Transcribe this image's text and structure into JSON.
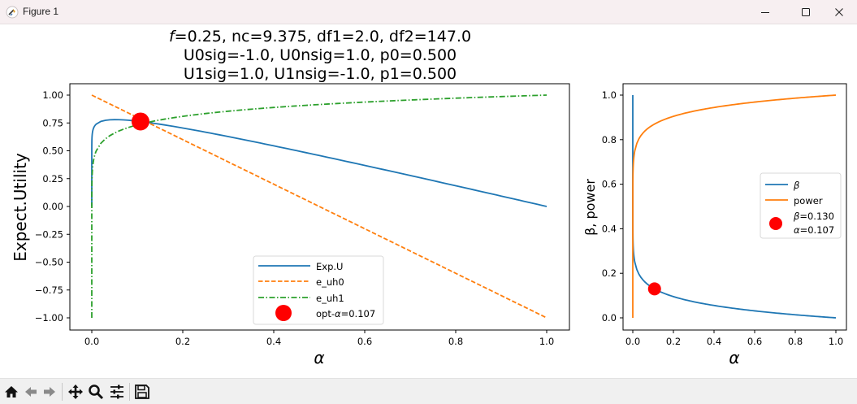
{
  "window": {
    "title": "Figure 1",
    "app_icon": "matplotlib-icon",
    "controls": [
      {
        "name": "minimize-button",
        "icon": "minimize-icon"
      },
      {
        "name": "maximize-button",
        "icon": "maximize-icon"
      },
      {
        "name": "close-button",
        "icon": "close-icon"
      }
    ]
  },
  "figure": {
    "suptitle_lines": [
      {
        "italic": "f",
        "rest": "=0.25, nc=9.375, df1=2.0, df2=147.0"
      },
      {
        "italic": "",
        "rest": "U0sig=-1.0, U0nsig=1.0, p0=0.500"
      },
      {
        "italic": "",
        "rest": "U1sig=1.0, U1nsig=-1.0, p1=0.500"
      }
    ]
  },
  "toolbar": {
    "buttons": [
      {
        "name": "home-button",
        "icon": "home-icon"
      },
      {
        "name": "back-button",
        "icon": "arrow-left-icon"
      },
      {
        "name": "forward-button",
        "icon": "arrow-right-icon"
      },
      {
        "name": "pan-button",
        "icon": "move-icon"
      },
      {
        "name": "zoom-button",
        "icon": "magnifier-icon"
      },
      {
        "name": "configure-subplots-button",
        "icon": "sliders-icon"
      },
      {
        "name": "save-button",
        "icon": "floppy-disk-icon"
      }
    ]
  },
  "chart_data": [
    {
      "type": "line",
      "title": "",
      "xlabel": "α",
      "ylabel": "Expect.Utility",
      "xlim": [
        -0.05,
        1.05
      ],
      "ylim": [
        -1.1,
        1.1
      ],
      "xticks": [
        "0.0",
        "0.2",
        "0.4",
        "0.6",
        "0.8",
        "1.0"
      ],
      "xtick_values": [
        0.0,
        0.2,
        0.4,
        0.6,
        0.8,
        1.0
      ],
      "yticks": [
        "1.00",
        "0.75",
        "0.50",
        "0.25",
        "0.00",
        "−0.25",
        "−0.50",
        "−0.75",
        "−1.00"
      ],
      "ytick_values": [
        1.0,
        0.75,
        0.5,
        0.25,
        0.0,
        -0.25,
        -0.5,
        -0.75,
        -1.0
      ],
      "grid": false,
      "legend_position": "lower-center",
      "series": [
        {
          "name": "Exp.U",
          "color": "#1f77b4",
          "style": "solid",
          "x": [
            0.0,
            0.001,
            0.005,
            0.01,
            0.02,
            0.05,
            0.107,
            0.2,
            0.3,
            0.4,
            0.5,
            0.6,
            0.7,
            0.8,
            0.9,
            1.0
          ],
          "y": [
            0.0,
            0.65,
            0.71,
            0.74,
            0.76,
            0.78,
            0.763,
            0.71,
            0.63,
            0.54,
            0.46,
            0.37,
            0.28,
            0.19,
            0.09,
            0.0
          ]
        },
        {
          "name": "e_uh0",
          "color": "#ff7f0e",
          "style": "dashed",
          "x": [
            0.0,
            1.0
          ],
          "y": [
            1.0,
            -1.0
          ]
        },
        {
          "name": "e_uh1",
          "color": "#2ca02c",
          "style": "dashdot",
          "x": [
            0.0,
            0.001,
            0.005,
            0.01,
            0.02,
            0.05,
            0.107,
            0.2,
            0.3,
            0.4,
            0.5,
            0.6,
            0.7,
            0.8,
            0.9,
            1.0
          ],
          "y": [
            -1.0,
            0.3,
            0.43,
            0.5,
            0.57,
            0.66,
            0.74,
            0.81,
            0.86,
            0.89,
            0.92,
            0.94,
            0.96,
            0.97,
            0.99,
            1.0
          ]
        }
      ],
      "markers": [
        {
          "name": "opt-α=0.107",
          "legend_prefix": "opt-",
          "legend_italic": "α",
          "legend_suffix": "=0.107",
          "x": 0.107,
          "y": 0.763,
          "color": "#ff0000"
        }
      ]
    },
    {
      "type": "line",
      "title": "",
      "xlabel": "α",
      "ylabel": "β, power",
      "xlim": [
        -0.05,
        1.05
      ],
      "ylim": [
        -0.05,
        1.05
      ],
      "xticks": [
        "0.0",
        "0.2",
        "0.4",
        "0.6",
        "0.8",
        "1.0"
      ],
      "xtick_values": [
        0.0,
        0.2,
        0.4,
        0.6,
        0.8,
        1.0
      ],
      "yticks": [
        "1.0",
        "0.8",
        "0.6",
        "0.4",
        "0.2",
        "0.0"
      ],
      "ytick_values": [
        1.0,
        0.8,
        0.6,
        0.4,
        0.2,
        0.0
      ],
      "grid": false,
      "legend_position": "center-right",
      "series": [
        {
          "name": "β",
          "color": "#1f77b4",
          "style": "solid",
          "x": [
            0.0,
            0.001,
            0.005,
            0.01,
            0.02,
            0.05,
            0.107,
            0.2,
            0.3,
            0.4,
            0.5,
            0.6,
            0.7,
            0.8,
            0.9,
            1.0
          ],
          "y": [
            1.0,
            0.35,
            0.28,
            0.25,
            0.22,
            0.17,
            0.13,
            0.095,
            0.07,
            0.055,
            0.042,
            0.031,
            0.022,
            0.014,
            0.007,
            0.0
          ]
        },
        {
          "name": "power",
          "color": "#ff7f0e",
          "style": "solid",
          "x": [
            0.0,
            0.001,
            0.005,
            0.01,
            0.02,
            0.05,
            0.107,
            0.2,
            0.3,
            0.4,
            0.5,
            0.6,
            0.7,
            0.8,
            0.9,
            1.0
          ],
          "y": [
            0.0,
            0.65,
            0.72,
            0.75,
            0.78,
            0.83,
            0.87,
            0.905,
            0.93,
            0.945,
            0.958,
            0.969,
            0.978,
            0.986,
            0.993,
            1.0
          ]
        }
      ],
      "markers": [
        {
          "name": "β=0.130 α=0.107",
          "legend_line1_italic": "β",
          "legend_line1_suffix": "=0.130",
          "legend_line2_italic": "α",
          "legend_line2_suffix": "=0.107",
          "x": 0.107,
          "y": 0.13,
          "color": "#ff0000"
        }
      ]
    }
  ]
}
